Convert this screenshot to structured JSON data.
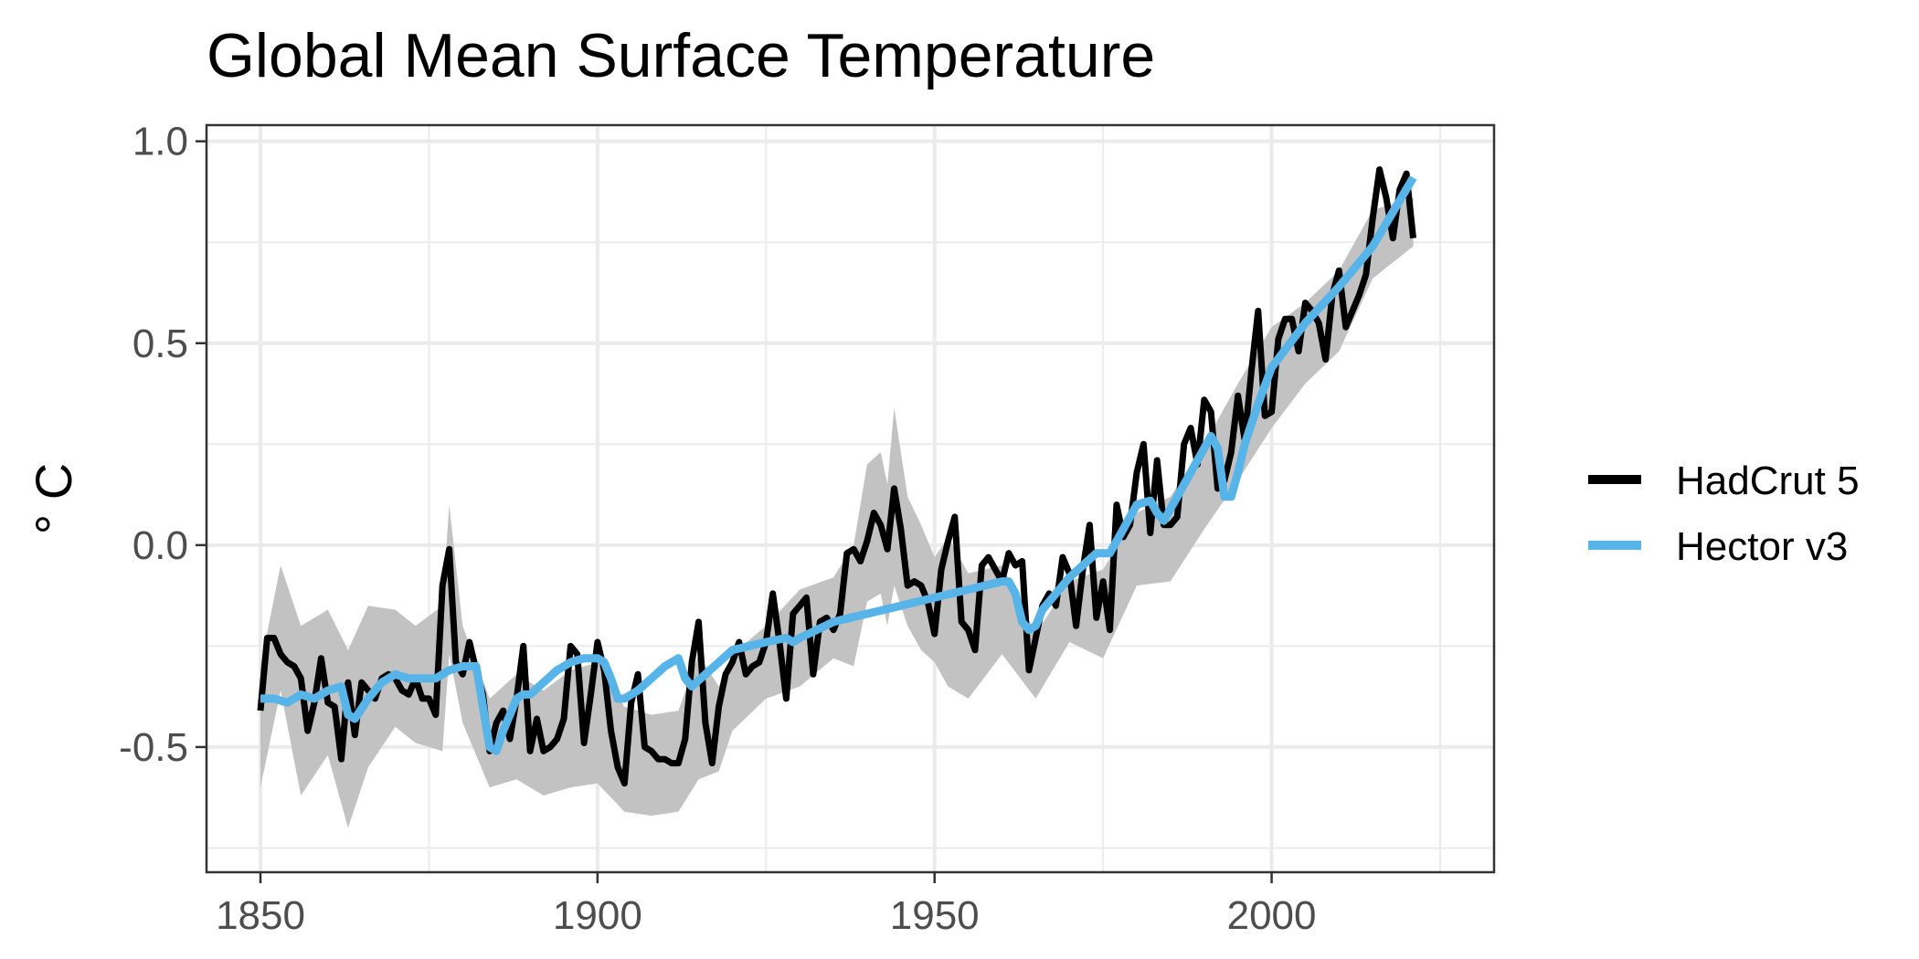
{
  "chart_data": {
    "type": "line",
    "title": "Global Mean Surface Temperature",
    "xlabel": "",
    "ylabel": "° C",
    "xlim": [
      1842,
      2033
    ],
    "ylim": [
      -0.81,
      1.04
    ],
    "x_ticks": [
      1850,
      1900,
      1950,
      2000
    ],
    "x_tick_labels": [
      "1850",
      "1900",
      "1950",
      "2000"
    ],
    "y_ticks": [
      -0.5,
      0.0,
      0.5,
      1.0
    ],
    "y_tick_labels": [
      "-0.5",
      "0.0",
      "0.5",
      "1.0"
    ],
    "grid": true,
    "legend_position": "right",
    "colors": {
      "hadcrut": "#000000",
      "hector": "#56B4E9",
      "band": "#c2c2c2",
      "grid": "#ebebeb"
    },
    "series": [
      {
        "name": "HadCrut 5",
        "type": "line",
        "x": [
          1850,
          1851,
          1852,
          1853,
          1854,
          1855,
          1856,
          1857,
          1858,
          1859,
          1860,
          1861,
          1862,
          1863,
          1864,
          1865,
          1866,
          1867,
          1868,
          1869,
          1870,
          1871,
          1872,
          1873,
          1874,
          1875,
          1876,
          1877,
          1878,
          1879,
          1880,
          1881,
          1882,
          1883,
          1884,
          1885,
          1886,
          1887,
          1888,
          1889,
          1890,
          1891,
          1892,
          1893,
          1894,
          1895,
          1896,
          1897,
          1898,
          1899,
          1900,
          1901,
          1902,
          1903,
          1904,
          1905,
          1906,
          1907,
          1908,
          1909,
          1910,
          1911,
          1912,
          1913,
          1914,
          1915,
          1916,
          1917,
          1918,
          1919,
          1920,
          1921,
          1922,
          1923,
          1924,
          1925,
          1926,
          1927,
          1928,
          1929,
          1930,
          1931,
          1932,
          1933,
          1934,
          1935,
          1936,
          1937,
          1938,
          1939,
          1940,
          1941,
          1942,
          1943,
          1944,
          1945,
          1946,
          1947,
          1948,
          1949,
          1950,
          1951,
          1952,
          1953,
          1954,
          1955,
          1956,
          1957,
          1958,
          1959,
          1960,
          1961,
          1962,
          1963,
          1964,
          1965,
          1966,
          1967,
          1968,
          1969,
          1970,
          1971,
          1972,
          1973,
          1974,
          1975,
          1976,
          1977,
          1978,
          1979,
          1980,
          1981,
          1982,
          1983,
          1984,
          1985,
          1986,
          1987,
          1988,
          1989,
          1990,
          1991,
          1992,
          1993,
          1994,
          1995,
          1996,
          1997,
          1998,
          1999,
          2000,
          2001,
          2002,
          2003,
          2004,
          2005,
          2006,
          2007,
          2008,
          2009,
          2010,
          2011,
          2012,
          2013,
          2014,
          2015,
          2016,
          2017,
          2018,
          2019,
          2020,
          2021
        ],
        "y": [
          -0.41,
          -0.23,
          -0.23,
          -0.27,
          -0.29,
          -0.3,
          -0.33,
          -0.46,
          -0.39,
          -0.28,
          -0.39,
          -0.4,
          -0.53,
          -0.34,
          -0.47,
          -0.34,
          -0.36,
          -0.38,
          -0.33,
          -0.32,
          -0.33,
          -0.36,
          -0.37,
          -0.33,
          -0.38,
          -0.38,
          -0.42,
          -0.1,
          -0.01,
          -0.29,
          -0.32,
          -0.24,
          -0.31,
          -0.37,
          -0.51,
          -0.44,
          -0.41,
          -0.48,
          -0.38,
          -0.25,
          -0.51,
          -0.43,
          -0.51,
          -0.5,
          -0.48,
          -0.43,
          -0.25,
          -0.27,
          -0.49,
          -0.37,
          -0.24,
          -0.31,
          -0.46,
          -0.55,
          -0.59,
          -0.39,
          -0.32,
          -0.5,
          -0.51,
          -0.53,
          -0.53,
          -0.54,
          -0.54,
          -0.48,
          -0.29,
          -0.19,
          -0.44,
          -0.54,
          -0.4,
          -0.32,
          -0.29,
          -0.24,
          -0.32,
          -0.3,
          -0.29,
          -0.24,
          -0.12,
          -0.24,
          -0.38,
          -0.17,
          -0.15,
          -0.13,
          -0.32,
          -0.19,
          -0.18,
          -0.21,
          -0.17,
          -0.02,
          -0.01,
          -0.04,
          0.01,
          0.08,
          0.05,
          -0.01,
          0.14,
          0.04,
          -0.1,
          -0.09,
          -0.1,
          -0.14,
          -0.22,
          -0.06,
          0.01,
          0.07,
          -0.19,
          -0.21,
          -0.26,
          -0.05,
          -0.03,
          -0.06,
          -0.09,
          -0.02,
          -0.05,
          -0.04,
          -0.31,
          -0.23,
          -0.15,
          -0.12,
          -0.15,
          -0.03,
          -0.07,
          -0.2,
          -0.06,
          0.05,
          -0.18,
          -0.09,
          -0.21,
          0.1,
          0.02,
          0.05,
          0.18,
          0.25,
          0.03,
          0.21,
          0.05,
          0.05,
          0.07,
          0.25,
          0.29,
          0.2,
          0.36,
          0.33,
          0.14,
          0.16,
          0.23,
          0.37,
          0.26,
          0.43,
          0.58,
          0.32,
          0.33,
          0.51,
          0.56,
          0.56,
          0.48,
          0.6,
          0.58,
          0.55,
          0.46,
          0.62,
          0.68,
          0.54,
          0.58,
          0.62,
          0.67,
          0.81,
          0.93,
          0.86,
          0.76,
          0.88,
          0.92,
          0.76
        ]
      },
      {
        "name": "Hector v3",
        "type": "line",
        "x": [
          1850,
          1852,
          1854,
          1856,
          1858,
          1860,
          1862,
          1863,
          1864,
          1866,
          1868,
          1870,
          1872,
          1874,
          1876,
          1878,
          1880,
          1881,
          1882,
          1883,
          1884,
          1885,
          1886,
          1887,
          1888,
          1889,
          1890,
          1892,
          1894,
          1896,
          1898,
          1900,
          1901,
          1902,
          1903,
          1904,
          1906,
          1908,
          1910,
          1911,
          1912,
          1913,
          1914,
          1916,
          1918,
          1920,
          1925,
          1928,
          1929,
          1930,
          1935,
          1940,
          1945,
          1950,
          1955,
          1960,
          1961,
          1962,
          1963,
          1964,
          1965,
          1966,
          1968,
          1970,
          1972,
          1974,
          1976,
          1978,
          1980,
          1982,
          1983,
          1984,
          1985,
          1986,
          1988,
          1990,
          1991,
          1992,
          1993,
          1994,
          1995,
          1996,
          1998,
          2000,
          2005,
          2010,
          2015,
          2021
        ],
        "y": [
          -0.38,
          -0.38,
          -0.39,
          -0.37,
          -0.38,
          -0.36,
          -0.35,
          -0.42,
          -0.43,
          -0.38,
          -0.34,
          -0.32,
          -0.33,
          -0.33,
          -0.33,
          -0.31,
          -0.3,
          -0.3,
          -0.3,
          -0.4,
          -0.5,
          -0.51,
          -0.46,
          -0.42,
          -0.38,
          -0.37,
          -0.37,
          -0.34,
          -0.31,
          -0.29,
          -0.28,
          -0.28,
          -0.29,
          -0.33,
          -0.38,
          -0.38,
          -0.36,
          -0.33,
          -0.3,
          -0.29,
          -0.28,
          -0.33,
          -0.35,
          -0.32,
          -0.29,
          -0.26,
          -0.24,
          -0.23,
          -0.24,
          -0.23,
          -0.19,
          -0.17,
          -0.15,
          -0.13,
          -0.11,
          -0.09,
          -0.09,
          -0.12,
          -0.19,
          -0.21,
          -0.2,
          -0.16,
          -0.12,
          -0.08,
          -0.05,
          -0.02,
          -0.02,
          0.04,
          0.1,
          0.11,
          0.08,
          0.06,
          0.09,
          0.12,
          0.18,
          0.24,
          0.27,
          0.24,
          0.12,
          0.12,
          0.18,
          0.25,
          0.35,
          0.44,
          0.55,
          0.64,
          0.74,
          0.91
        ]
      },
      {
        "type": "band",
        "x": [
          1850,
          1853,
          1856,
          1860,
          1863,
          1866,
          1870,
          1873,
          1877,
          1878,
          1880,
          1884,
          1888,
          1892,
          1896,
          1900,
          1904,
          1908,
          1912,
          1915,
          1918,
          1920,
          1925,
          1930,
          1935,
          1938,
          1940,
          1942,
          1943,
          1944,
          1946,
          1948,
          1950,
          1952,
          1955,
          1960,
          1965,
          1970,
          1975,
          1980,
          1985,
          1990,
          1995,
          2000,
          2005,
          2010,
          2015,
          2021
        ],
        "upper": [
          -0.3,
          -0.05,
          -0.2,
          -0.16,
          -0.26,
          -0.15,
          -0.16,
          -0.2,
          -0.15,
          0.1,
          -0.2,
          -0.38,
          -0.32,
          -0.36,
          -0.31,
          -0.29,
          -0.4,
          -0.42,
          -0.41,
          -0.27,
          -0.35,
          -0.27,
          -0.2,
          -0.11,
          -0.08,
          0.0,
          0.2,
          0.23,
          0.15,
          0.34,
          0.12,
          0.05,
          -0.03,
          0.02,
          -0.07,
          -0.05,
          -0.22,
          -0.09,
          -0.06,
          0.08,
          0.12,
          0.25,
          0.4,
          0.54,
          0.6,
          0.68,
          0.83,
          0.86
        ],
        "lower": [
          -0.6,
          -0.36,
          -0.62,
          -0.52,
          -0.7,
          -0.55,
          -0.45,
          -0.49,
          -0.51,
          -0.27,
          -0.44,
          -0.6,
          -0.58,
          -0.62,
          -0.6,
          -0.59,
          -0.66,
          -0.67,
          -0.66,
          -0.58,
          -0.56,
          -0.46,
          -0.38,
          -0.35,
          -0.28,
          -0.3,
          -0.14,
          -0.12,
          -0.2,
          -0.1,
          -0.2,
          -0.26,
          -0.29,
          -0.35,
          -0.38,
          -0.27,
          -0.38,
          -0.24,
          -0.28,
          -0.1,
          -0.09,
          0.04,
          0.16,
          0.29,
          0.4,
          0.48,
          0.66,
          0.74
        ]
      }
    ]
  }
}
